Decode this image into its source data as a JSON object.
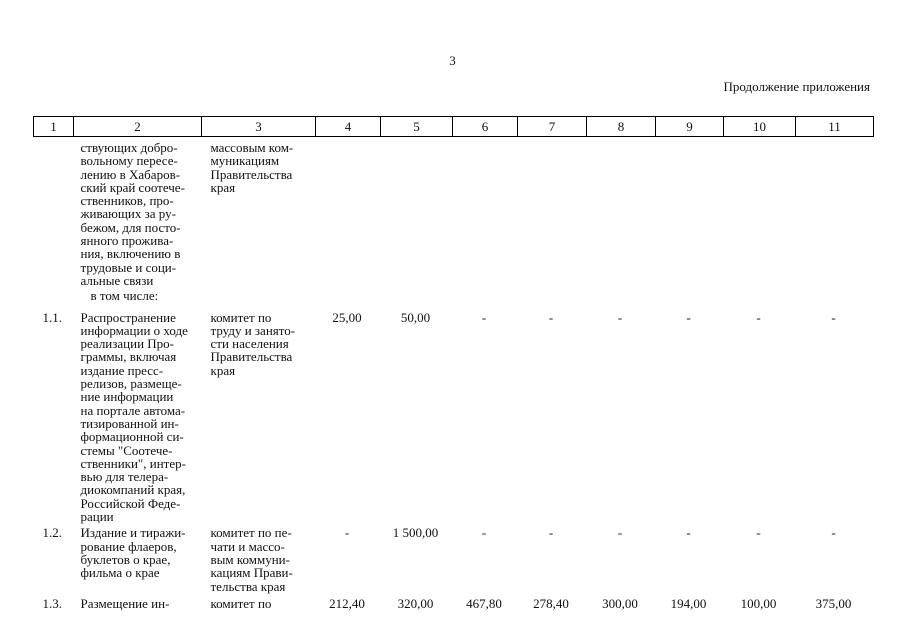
{
  "page": {
    "number": "3",
    "continuation_note": "Продолжение приложения"
  },
  "table": {
    "column_numbers": [
      "1",
      "2",
      "3",
      "4",
      "5",
      "6",
      "7",
      "8",
      "9",
      "10",
      "11"
    ],
    "rows": [
      {
        "variant": "continuation",
        "cells": [
          "",
          "ствующих добро-\nвольному пересе-\nлению в Хабаров-\nский край соотече-\nственников, про-\nживающих за ру-\nбежом, для посто-\nянного прожива-\nния, включению в\nтрудовые и соци-\nальные связи",
          "массовым ком-\nмуникациям\nПравительства\nкрая",
          "",
          "",
          "",
          "",
          "",
          "",
          "",
          ""
        ]
      },
      {
        "variant": "subheading",
        "cells": [
          "",
          "в том числе:",
          "",
          "",
          "",
          "",
          "",
          "",
          "",
          "",
          ""
        ]
      },
      {
        "variant": "item",
        "cells": [
          "1.1.",
          "Распространение\nинформации о ходе\nреализации Про-\nграммы, включая\nиздание пресс-\nрелизов, размеще-\nние информации\nна портале автома-\nтизированной ин-\nформационной си-\nстемы \"Соотече-\nственники\", интер-\nвью для телера-\nдиокомпаний края,\nРоссийской Феде-\nрации",
          "комитет по\nтруду и занято-\nсти населения\nПравительства\nкрая",
          "25,00",
          "50,00",
          "-",
          "-",
          "-",
          "-",
          "-",
          "-"
        ]
      },
      {
        "variant": "item",
        "cells": [
          "1.2.",
          "Издание и тиражи-\nрование флаеров,\nбуклетов о крае,\nфильма о крае",
          "комитет по пе-\nчати и массо-\nвым коммуни-\nкациям Прави-\nтельства края",
          "-",
          "1 500,00",
          "-",
          "-",
          "-",
          "-",
          "-",
          "-"
        ]
      },
      {
        "variant": "item",
        "cells": [
          "1.3.",
          "Размещение ин-",
          "комитет по",
          "212,40",
          "320,00",
          "467,80",
          "278,40",
          "300,00",
          "194,00",
          "100,00",
          "375,00"
        ]
      }
    ]
  }
}
